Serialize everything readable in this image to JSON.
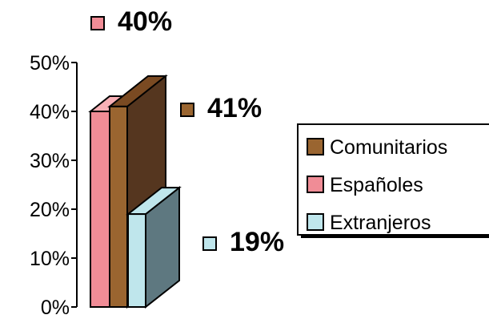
{
  "chart_data": {
    "type": "bar",
    "style": "3d-overlapping-columns",
    "categories": [
      ""
    ],
    "series": [
      {
        "name": "Comunitarios",
        "values": [
          41
        ],
        "label": "41%",
        "color": "#9a6530",
        "side_color": "#55361f",
        "top_color": "#7a4a22"
      },
      {
        "name": "Españoles",
        "values": [
          40
        ],
        "label": "40%",
        "color": "#f08c96",
        "side_color": "#c9707a",
        "top_color": "#f8b0b6"
      },
      {
        "name": "Extranjeros",
        "values": [
          19
        ],
        "label": "19%",
        "color": "#bfe6ec",
        "side_color": "#5e7880",
        "top_color": "#bfe6ec"
      }
    ],
    "ylim": [
      0,
      50
    ],
    "yticks": [
      "0%",
      "10%",
      "20%",
      "30%",
      "40%",
      "50%"
    ],
    "legend": {
      "placement": "right",
      "entries": [
        "Comunitarios",
        "Españoles",
        "Extranjeros"
      ]
    },
    "grid": false
  }
}
